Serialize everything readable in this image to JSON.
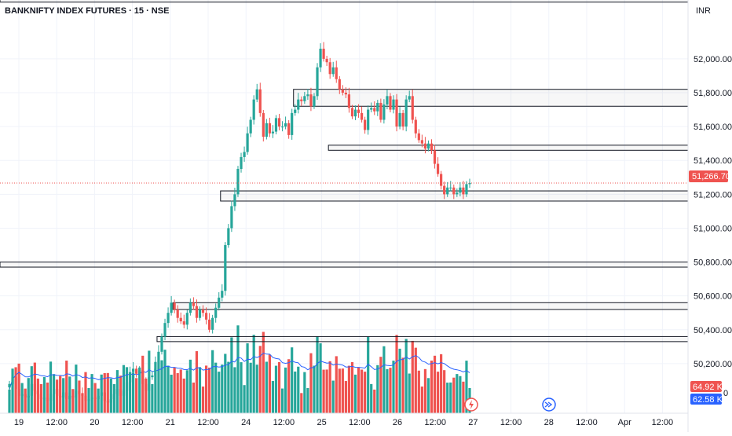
{
  "header": {
    "title": "BANKNIFTY INDEX FUTURES · 15 · NSE",
    "currency": "INR"
  },
  "colors": {
    "up": "#26a69a",
    "down": "#ef5350",
    "grid": "#f0f3fa",
    "text": "#131722",
    "ma": "#2962ff",
    "vol_badge": "#2962ff"
  },
  "badges": {
    "last_price": "51,266.70",
    "volume": "64.92 K",
    "volume_ma": "62.58 K",
    "partial": "0"
  },
  "icons": {
    "lightning": "lightning-icon",
    "replay": "fast-forward-icon"
  },
  "chart_data": {
    "type": "candlestick",
    "title": "BANKNIFTY INDEX FUTURES · 15 · NSE",
    "currency": "INR",
    "ylim": [
      50000,
      52350
    ],
    "yticks": [
      50200,
      50400,
      50600,
      50800,
      51000,
      51200,
      51400,
      51600,
      51800,
      52000
    ],
    "ytick_labels": [
      "50,200.00",
      "50,400.00",
      "50,600.00",
      "50,800.00",
      "51,000.00",
      "51,200.00",
      "51,400.00",
      "51,600.00",
      "51,800.00",
      "52,000.00"
    ],
    "xtick_labels": [
      "19",
      "12:00",
      "20",
      "12:00",
      "21",
      "12:00",
      "24",
      "12:00",
      "25",
      "12:00",
      "26",
      "12:00",
      "27",
      "12:00",
      "28",
      "12:00",
      "Apr",
      "12:00"
    ],
    "last_price": 51266.7,
    "zones": [
      {
        "low": 50770,
        "high": 50800,
        "from_bar": 0
      },
      {
        "low": 50520,
        "high": 50560,
        "from_bar": 52
      },
      {
        "low": 50330,
        "high": 50360,
        "from_bar": 47
      },
      {
        "low": 51160,
        "high": 51220,
        "from_bar": 67
      },
      {
        "low": 51460,
        "high": 51490,
        "from_bar": 101
      },
      {
        "low": 51720,
        "high": 51820,
        "from_bar": 90
      },
      {
        "low": 52335,
        "high": 52350,
        "from_bar": 0
      }
    ],
    "closes": [
      50080,
      50120,
      50050,
      50010,
      50020,
      50000,
      50010,
      50080,
      50040,
      50020,
      49990,
      50000,
      49980,
      50020,
      50050,
      50010,
      50000,
      50030,
      49990,
      50010,
      50000,
      50040,
      50020,
      50010,
      49980,
      49990,
      50000,
      49990,
      50010,
      50030,
      49980,
      49970,
      49990,
      50020,
      50050,
      50010,
      50040,
      50090,
      50150,
      50170,
      50140,
      50160,
      50080,
      50040,
      50120,
      50130,
      50210,
      50270,
      50360,
      50440,
      50500,
      50560,
      50520,
      50470,
      50450,
      50430,
      50500,
      50560,
      50540,
      50470,
      50520,
      50500,
      50460,
      50400,
      50470,
      50530,
      50590,
      50630,
      50900,
      51000,
      51130,
      51200,
      51350,
      51420,
      51450,
      51560,
      51640,
      51760,
      51820,
      51680,
      51540,
      51620,
      51560,
      51570,
      51650,
      51600,
      51600,
      51620,
      51550,
      51680,
      51700,
      51760,
      51750,
      51780,
      51790,
      51720,
      51780,
      51950,
      52060,
      52000,
      51980,
      51910,
      51950,
      51880,
      51820,
      51800,
      51790,
      51710,
      51660,
      51700,
      51680,
      51640,
      51580,
      51700,
      51710,
      51690,
      51740,
      51640,
      51730,
      51780,
      51700,
      51760,
      51600,
      51680,
      51600,
      51760,
      51780,
      51640,
      51560,
      51520,
      51500,
      51470,
      51500,
      51460,
      51380,
      51320,
      51250,
      51200,
      51240,
      51240,
      51200,
      51210,
      51240,
      51200,
      51260,
      51267
    ],
    "volume": {
      "ylim": [
        0,
        160000
      ],
      "ma_label": "62.58 K",
      "last_label": "64.92 K"
    }
  }
}
